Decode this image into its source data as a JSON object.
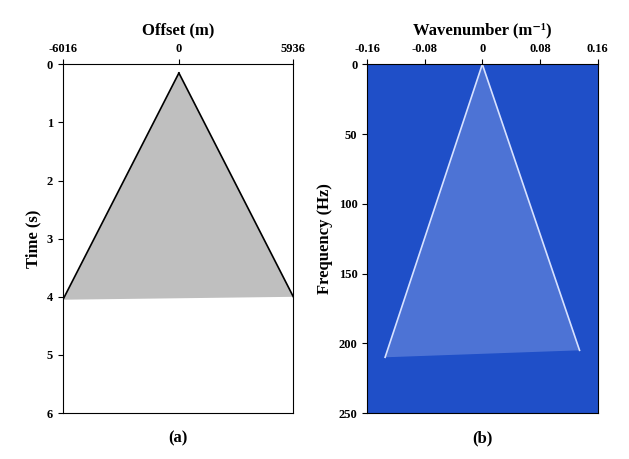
{
  "chart_data": [
    {
      "type": "area",
      "color": "#ffffff",
      "x_label": "Offset (m)",
      "y_label": "Time (s)",
      "annotations": [
        "(a)"
      ],
      "xlim": [
        -6016,
        5936
      ],
      "xticks": [
        -6016,
        0,
        5936
      ],
      "ylim": [
        6,
        0
      ],
      "yticks": [
        0,
        1,
        2,
        3,
        4,
        5,
        6
      ],
      "series": [
        {
          "color": "#000000",
          "x": [
            0,
            -6016
          ],
          "values": [
            0.15,
            4.05
          ]
        },
        {
          "color": "#000000",
          "x": [
            0,
            5936
          ],
          "values": [
            0.15,
            4.0
          ]
        }
      ]
    },
    {
      "type": "area",
      "color": "#1f4fc8",
      "x_label": "Wavenumber (m⁻¹)",
      "y_label": "Frequency (Hz)",
      "annotations": [
        "(b)"
      ],
      "xlim": [
        -0.16,
        0.16
      ],
      "xticks": [
        -0.16,
        -0.08,
        0,
        0.08,
        0.16
      ],
      "ylim": [
        250,
        0
      ],
      "yticks": [
        0,
        50,
        100,
        150,
        200,
        250
      ],
      "series": [
        {
          "color": "#d8e2ff",
          "x": [
            0,
            -0.135
          ],
          "values": [
            0,
            210
          ]
        },
        {
          "color": "#d8e2ff",
          "x": [
            0,
            0.135
          ],
          "values": [
            0,
            205
          ]
        }
      ]
    }
  ]
}
